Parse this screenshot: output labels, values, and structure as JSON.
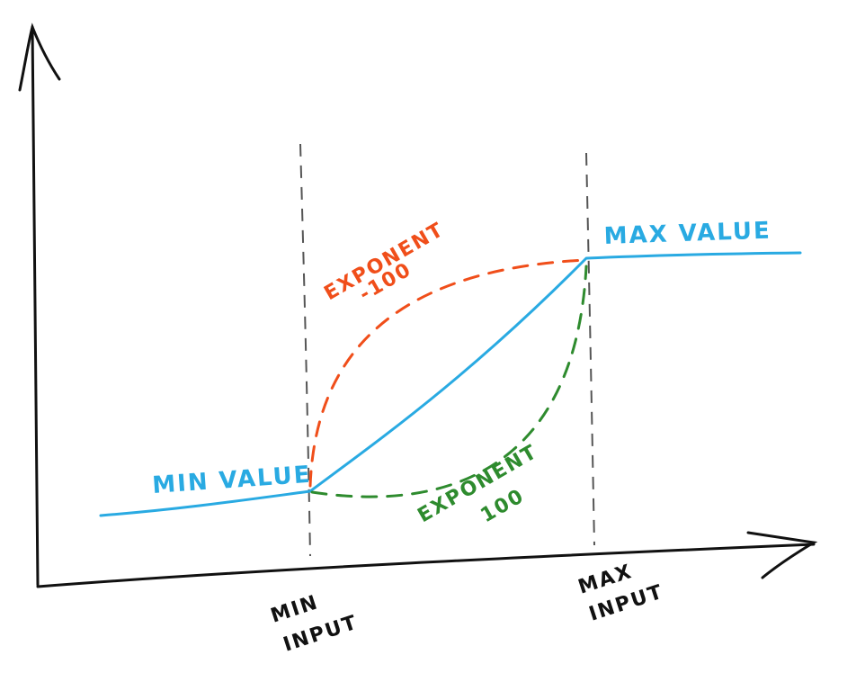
{
  "labels": {
    "min_value": "MIN VALUE",
    "max_value": "MAX VALUE",
    "exponent_neg_word": "EXPONENT",
    "exponent_neg_num": "-100",
    "exponent_pos_word": "EXPONENT",
    "exponent_pos_num": "100",
    "min_input_line1": "MIN",
    "min_input_line2": "INPUT",
    "max_input_line1": "MAX",
    "max_input_line2": "INPUT"
  },
  "colors": {
    "axis": "#111111",
    "linear_curve": "#29aae2",
    "negative_exponent_curve": "#f04e1a",
    "positive_exponent_curve": "#2e8b2e",
    "guide_lines": "#555555"
  }
}
